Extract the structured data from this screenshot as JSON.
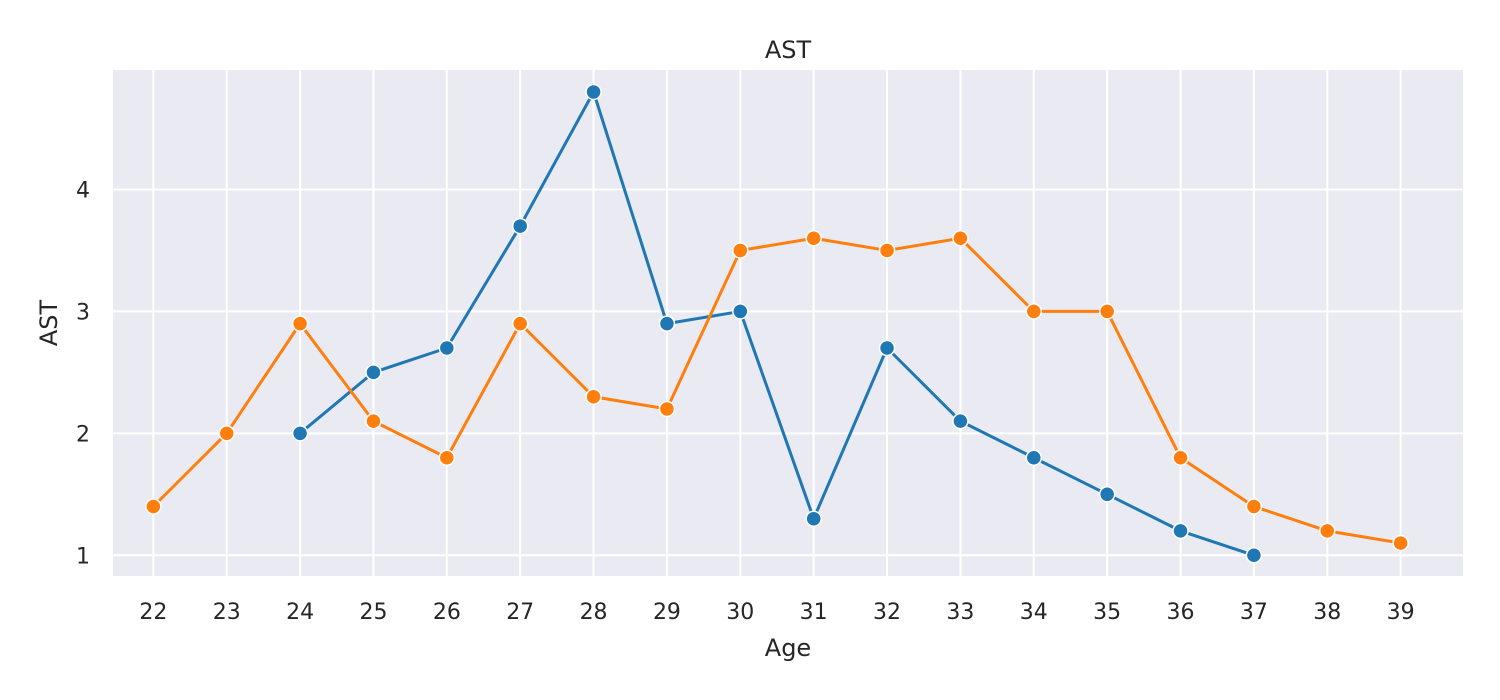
{
  "chart_data": {
    "type": "line",
    "title": "AST",
    "xlabel": "Age",
    "ylabel": "AST",
    "x_ticks": [
      "22",
      "23",
      "24",
      "25",
      "26",
      "27",
      "28",
      "29",
      "30",
      "31",
      "32",
      "33",
      "34",
      "35",
      "36",
      "37",
      "38",
      "39"
    ],
    "y_ticks": [
      "1",
      "2",
      "3",
      "4"
    ],
    "xlim": [
      21.45,
      39.85
    ],
    "ylim": [
      0.83,
      4.98
    ],
    "grid": true,
    "background_color": "#eaeaf2",
    "series": [
      {
        "color": "#1f77b4",
        "points": [
          {
            "x": 24,
            "y": 2.0
          },
          {
            "x": 25,
            "y": 2.5
          },
          {
            "x": 26,
            "y": 2.7
          },
          {
            "x": 27,
            "y": 3.7
          },
          {
            "x": 28,
            "y": 4.8
          },
          {
            "x": 29,
            "y": 2.9
          },
          {
            "x": 30,
            "y": 3.0
          },
          {
            "x": 31,
            "y": 1.3
          },
          {
            "x": 32,
            "y": 2.7
          },
          {
            "x": 33,
            "y": 2.1
          },
          {
            "x": 34,
            "y": 1.8
          },
          {
            "x": 35,
            "y": 1.5
          },
          {
            "x": 36,
            "y": 1.2
          },
          {
            "x": 37,
            "y": 1.0
          }
        ]
      },
      {
        "color": "#ff7f0e",
        "points": [
          {
            "x": 22,
            "y": 1.4
          },
          {
            "x": 23,
            "y": 2.0
          },
          {
            "x": 24,
            "y": 2.9
          },
          {
            "x": 25,
            "y": 2.1
          },
          {
            "x": 26,
            "y": 1.8
          },
          {
            "x": 27,
            "y": 2.9
          },
          {
            "x": 28,
            "y": 2.3
          },
          {
            "x": 29,
            "y": 2.2
          },
          {
            "x": 30,
            "y": 3.5
          },
          {
            "x": 31,
            "y": 3.6
          },
          {
            "x": 32,
            "y": 3.5
          },
          {
            "x": 33,
            "y": 3.6
          },
          {
            "x": 34,
            "y": 3.0
          },
          {
            "x": 35,
            "y": 3.0
          },
          {
            "x": 36,
            "y": 1.8
          },
          {
            "x": 37,
            "y": 1.4
          },
          {
            "x": 38,
            "y": 1.2
          },
          {
            "x": 39,
            "y": 1.1
          }
        ]
      }
    ]
  }
}
